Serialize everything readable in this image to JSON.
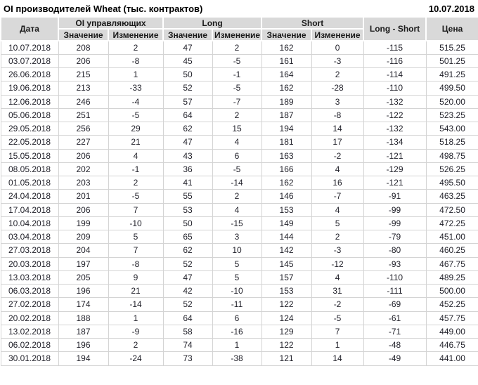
{
  "title": "OI производителей Wheat (тыс. контрактов)",
  "report_date": "10.07.2018",
  "colors": {
    "positive": "#008000",
    "negative": "#c00000",
    "neutral_text": "#1f1f28",
    "header_bg": "#d9d9d9",
    "grid_border": "#d4d4d4"
  },
  "table": {
    "columns": {
      "date": "Дата",
      "oi_group": "OI управляющих",
      "long_group": "Long",
      "short_group": "Short",
      "value": "Значение",
      "change": "Изменение",
      "long_short": "Long - Short",
      "price": "Цена"
    },
    "rows": [
      {
        "date": "10.07.2018",
        "oi": 208,
        "oi_chg": 2,
        "long": 47,
        "long_chg": 2,
        "short": 162,
        "short_chg": 0,
        "long_short": -115,
        "price": "515.25"
      },
      {
        "date": "03.07.2018",
        "oi": 206,
        "oi_chg": -8,
        "long": 45,
        "long_chg": -5,
        "short": 161,
        "short_chg": -3,
        "long_short": -116,
        "price": "501.25"
      },
      {
        "date": "26.06.2018",
        "oi": 215,
        "oi_chg": 1,
        "long": 50,
        "long_chg": -1,
        "short": 164,
        "short_chg": 2,
        "long_short": -114,
        "price": "491.25"
      },
      {
        "date": "19.06.2018",
        "oi": 213,
        "oi_chg": -33,
        "long": 52,
        "long_chg": -5,
        "short": 162,
        "short_chg": -28,
        "long_short": -110,
        "price": "499.50"
      },
      {
        "date": "12.06.2018",
        "oi": 246,
        "oi_chg": -4,
        "long": 57,
        "long_chg": -7,
        "short": 189,
        "short_chg": 3,
        "long_short": -132,
        "price": "520.00"
      },
      {
        "date": "05.06.2018",
        "oi": 251,
        "oi_chg": -5,
        "long": 64,
        "long_chg": 2,
        "short": 187,
        "short_chg": -8,
        "long_short": -122,
        "price": "523.25"
      },
      {
        "date": "29.05.2018",
        "oi": 256,
        "oi_chg": 29,
        "long": 62,
        "long_chg": 15,
        "short": 194,
        "short_chg": 14,
        "long_short": -132,
        "price": "543.00"
      },
      {
        "date": "22.05.2018",
        "oi": 227,
        "oi_chg": 21,
        "long": 47,
        "long_chg": 4,
        "short": 181,
        "short_chg": 17,
        "long_short": -134,
        "price": "518.25"
      },
      {
        "date": "15.05.2018",
        "oi": 206,
        "oi_chg": 4,
        "long": 43,
        "long_chg": 6,
        "short": 163,
        "short_chg": -2,
        "long_short": -121,
        "price": "498.75"
      },
      {
        "date": "08.05.2018",
        "oi": 202,
        "oi_chg": -1,
        "long": 36,
        "long_chg": -5,
        "short": 166,
        "short_chg": 4,
        "long_short": -129,
        "price": "526.25"
      },
      {
        "date": "01.05.2018",
        "oi": 203,
        "oi_chg": 2,
        "long": 41,
        "long_chg": -14,
        "short": 162,
        "short_chg": 16,
        "long_short": -121,
        "price": "495.50"
      },
      {
        "date": "24.04.2018",
        "oi": 201,
        "oi_chg": -5,
        "long": 55,
        "long_chg": 2,
        "short": 146,
        "short_chg": -7,
        "long_short": -91,
        "price": "463.25"
      },
      {
        "date": "17.04.2018",
        "oi": 206,
        "oi_chg": 7,
        "long": 53,
        "long_chg": 4,
        "short": 153,
        "short_chg": 4,
        "long_short": -99,
        "price": "472.50"
      },
      {
        "date": "10.04.2018",
        "oi": 199,
        "oi_chg": -10,
        "long": 50,
        "long_chg": -15,
        "short": 149,
        "short_chg": 5,
        "long_short": -99,
        "price": "472.25"
      },
      {
        "date": "03.04.2018",
        "oi": 209,
        "oi_chg": 5,
        "long": 65,
        "long_chg": 3,
        "short": 144,
        "short_chg": 2,
        "long_short": -79,
        "price": "451.00"
      },
      {
        "date": "27.03.2018",
        "oi": 204,
        "oi_chg": 7,
        "long": 62,
        "long_chg": 10,
        "short": 142,
        "short_chg": -3,
        "long_short": -80,
        "price": "460.25"
      },
      {
        "date": "20.03.2018",
        "oi": 197,
        "oi_chg": -8,
        "long": 52,
        "long_chg": 5,
        "short": 145,
        "short_chg": -12,
        "long_short": -93,
        "price": "467.75"
      },
      {
        "date": "13.03.2018",
        "oi": 205,
        "oi_chg": 9,
        "long": 47,
        "long_chg": 5,
        "short": 157,
        "short_chg": 4,
        "long_short": -110,
        "price": "489.25"
      },
      {
        "date": "06.03.2018",
        "oi": 196,
        "oi_chg": 21,
        "long": 42,
        "long_chg": -10,
        "short": 153,
        "short_chg": 31,
        "long_short": -111,
        "price": "500.00"
      },
      {
        "date": "27.02.2018",
        "oi": 174,
        "oi_chg": -14,
        "long": 52,
        "long_chg": -11,
        "short": 122,
        "short_chg": -2,
        "long_short": -69,
        "price": "452.25"
      },
      {
        "date": "20.02.2018",
        "oi": 188,
        "oi_chg": 1,
        "long": 64,
        "long_chg": 6,
        "short": 124,
        "short_chg": -5,
        "long_short": -61,
        "price": "457.75"
      },
      {
        "date": "13.02.2018",
        "oi": 187,
        "oi_chg": -9,
        "long": 58,
        "long_chg": -16,
        "short": 129,
        "short_chg": 7,
        "long_short": -71,
        "price": "449.00"
      },
      {
        "date": "06.02.2018",
        "oi": 196,
        "oi_chg": 2,
        "long": 74,
        "long_chg": 1,
        "short": 122,
        "short_chg": 1,
        "long_short": -48,
        "price": "446.75"
      },
      {
        "date": "30.01.2018",
        "oi": 194,
        "oi_chg": -24,
        "long": 73,
        "long_chg": -38,
        "short": 121,
        "short_chg": 14,
        "long_short": -49,
        "price": "441.00"
      }
    ]
  }
}
